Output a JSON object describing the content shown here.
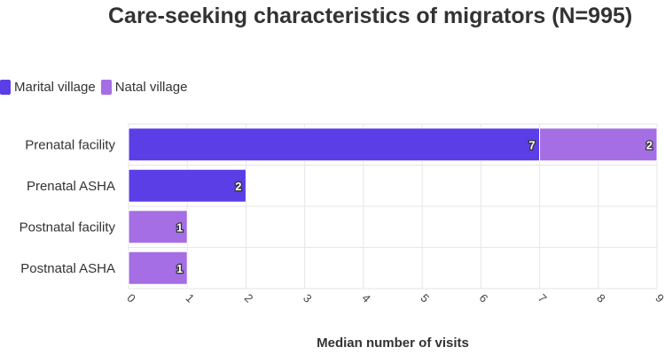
{
  "chart_data": {
    "type": "bar",
    "orientation": "horizontal",
    "stacked": true,
    "title": "Care-seeking characteristics of migrators (N=995)",
    "xlabel": "Median number of visits",
    "ylabel": "",
    "xlim": [
      0,
      9
    ],
    "x_ticks": [
      "0",
      "1",
      "2",
      "3",
      "4",
      "5",
      "6",
      "7",
      "8",
      "9"
    ],
    "categories": [
      "Prenatal facility",
      "Prenatal ASHA",
      "Postnatal facility",
      "Postnatal ASHA"
    ],
    "series": [
      {
        "name": "Marital village",
        "color": "#5b3ee6",
        "values": [
          7,
          2,
          0,
          0
        ]
      },
      {
        "name": "Natal village",
        "color": "#a56ee4",
        "values": [
          2,
          0,
          1,
          1
        ]
      }
    ],
    "legend_position": "top-left",
    "grid": true
  }
}
